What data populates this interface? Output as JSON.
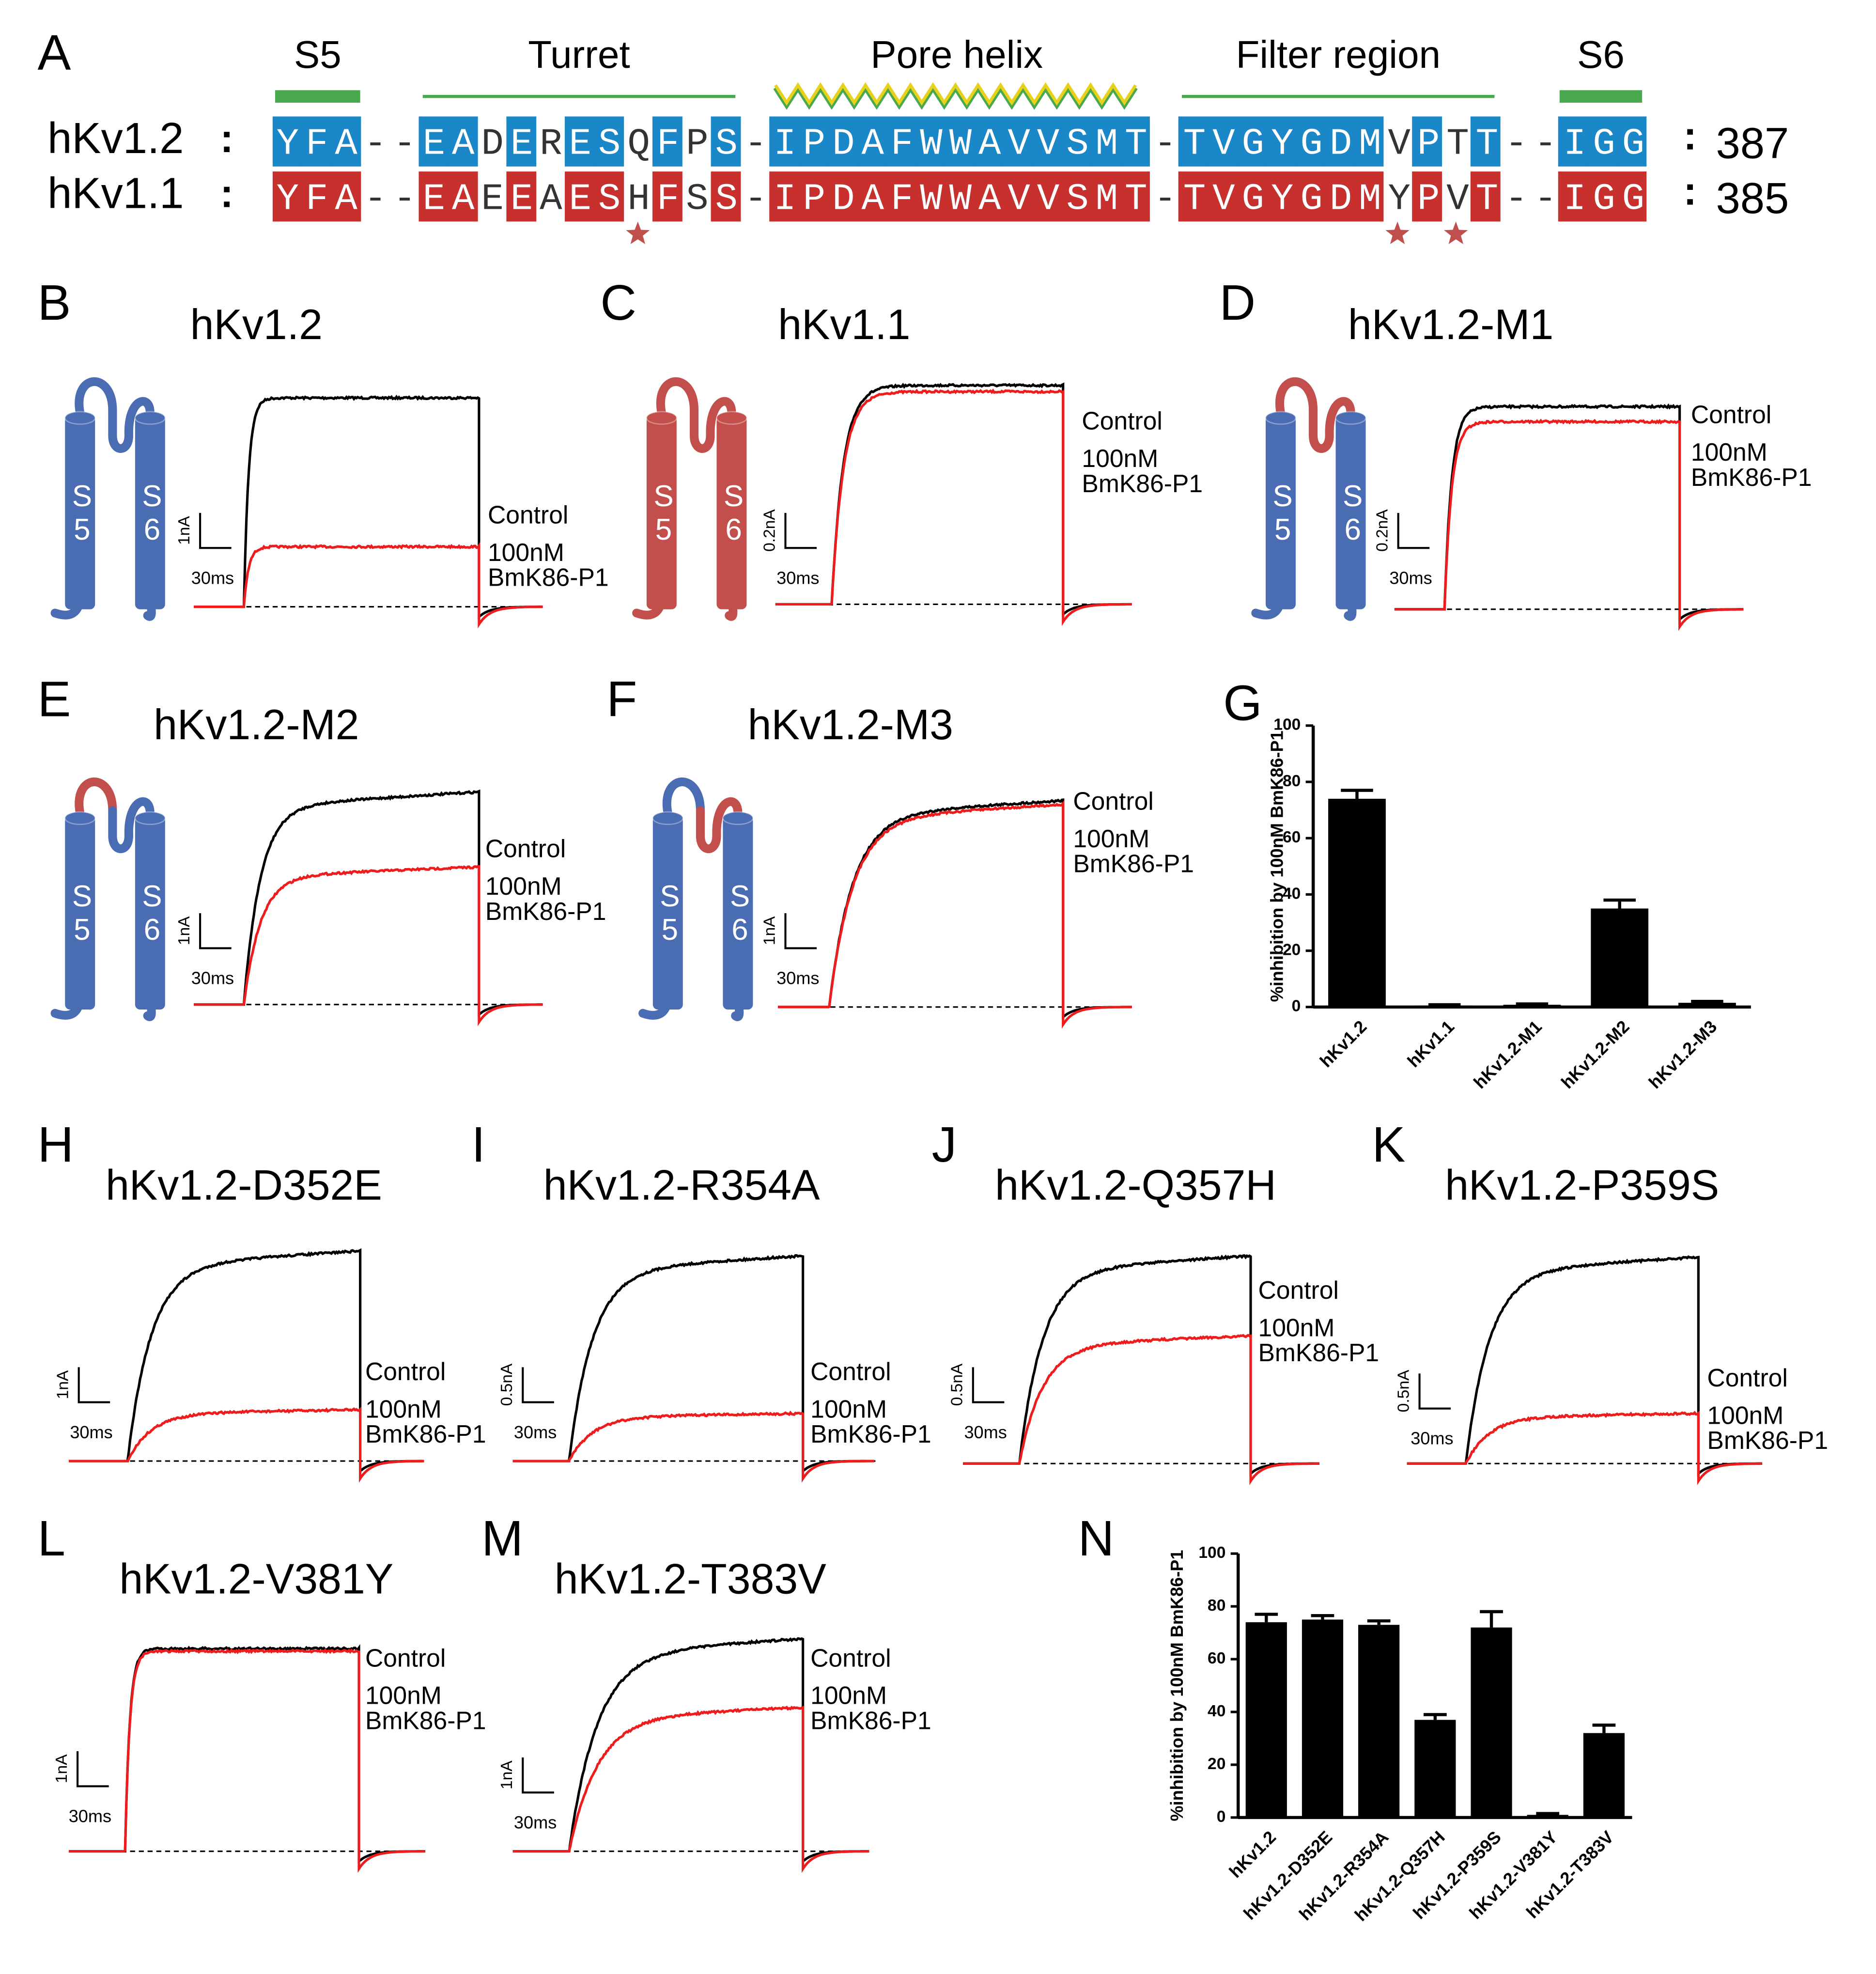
{
  "alignment": {
    "letter": "A",
    "separator": ":",
    "regions": [
      {
        "label": "S5"
      },
      {
        "label": "Turret"
      },
      {
        "label": "Pore helix"
      },
      {
        "label": "Filter region"
      },
      {
        "label": "S6"
      }
    ],
    "rows": [
      {
        "name": "hKv1.2",
        "sequence": "YFA--EADERESQFPS-IPDAFWWAVVSMT-TVGYGDMVPTT--IGG",
        "end": 387,
        "color": "#1a87c8"
      },
      {
        "name": "hKv1.1",
        "sequence": "YFA--EAEEAESHFSS-IPDAFWWAVVSMT-TVGYGDMYPVT--IGG",
        "end": 385,
        "color": "#c8302e"
      }
    ]
  },
  "cartoon_labels": [
    "S5",
    "S6"
  ],
  "trace_colors": {
    "control": "#000000",
    "toxin": "#ee1c1c"
  },
  "traces": [
    {
      "letter": "B",
      "title": "hKv1.2",
      "current_scale": "1nA",
      "time_scale": "30ms",
      "control": "Control",
      "toxin": [
        "100nM",
        "BmK86-P1"
      ]
    },
    {
      "letter": "C",
      "title": "hKv1.1",
      "current_scale": "0.2nA",
      "time_scale": "30ms",
      "control": "Control",
      "toxin": [
        "100nM",
        "BmK86-P1"
      ]
    },
    {
      "letter": "D",
      "title": "hKv1.2-M1",
      "current_scale": "0.2nA",
      "time_scale": "30ms",
      "control": "Control",
      "toxin": [
        "100nM",
        "BmK86-P1"
      ]
    },
    {
      "letter": "E",
      "title": "hKv1.2-M2",
      "current_scale": "1nA",
      "time_scale": "30ms",
      "control": "Control",
      "toxin": [
        "100nM",
        "BmK86-P1"
      ]
    },
    {
      "letter": "F",
      "title": "hKv1.2-M3",
      "current_scale": "1nA",
      "time_scale": "30ms",
      "control": "Control",
      "toxin": [
        "100nM",
        "BmK86-P1"
      ]
    },
    {
      "letter": "H",
      "title": "hKv1.2-D352E",
      "current_scale": "1nA",
      "time_scale": "30ms",
      "control": "Control",
      "toxin": [
        "100nM",
        "BmK86-P1"
      ]
    },
    {
      "letter": "I",
      "title": "hKv1.2-R354A",
      "current_scale": "0.5nA",
      "time_scale": "30ms",
      "control": "Control",
      "toxin": [
        "100nM",
        "BmK86-P1"
      ]
    },
    {
      "letter": "J",
      "title": "hKv1.2-Q357H",
      "current_scale": "0.5nA",
      "time_scale": "30ms",
      "control": "Control",
      "toxin": [
        "100nM",
        "BmK86-P1"
      ]
    },
    {
      "letter": "K",
      "title": "hKv1.2-P359S",
      "current_scale": "0.5nA",
      "time_scale": "30ms",
      "control": "Control",
      "toxin": [
        "100nM",
        "BmK86-P1"
      ]
    },
    {
      "letter": "L",
      "title": "hKv1.2-V381Y",
      "current_scale": "1nA",
      "time_scale": "30ms",
      "control": "Control",
      "toxin": [
        "100nM",
        "BmK86-P1"
      ]
    },
    {
      "letter": "M",
      "title": "hKv1.2-T383V",
      "current_scale": "1nA",
      "time_scale": "30ms",
      "control": "Control",
      "toxin": [
        "100nM",
        "BmK86-P1"
      ]
    }
  ],
  "chart_data": [
    {
      "type": "bar",
      "letter": "G",
      "ylabel": "%inhibition by 100nM BmK86-P1",
      "categories": [
        "hKv1.2",
        "hKv1.1",
        "hKv1.2-M1",
        "hKv1.2-M2",
        "hKv1.2-M3"
      ],
      "values": [
        74,
        0.5,
        0.8,
        35,
        1.5
      ],
      "errors": [
        3,
        0.3,
        0.3,
        3,
        0.5
      ],
      "color": "#000000",
      "ylim": [
        0,
        100
      ],
      "yticks": [
        0,
        20,
        40,
        60,
        80,
        100
      ]
    },
    {
      "type": "bar",
      "letter": "N",
      "ylabel": "%inhibition by 100nM BmK86-P1",
      "categories": [
        "hKv1.2",
        "hKv1.2-D352E",
        "hKv1.2-R354A",
        "hKv1.2-Q357H",
        "hKv1.2-P359S",
        "hKv1.2-V381Y",
        "hKv1.2-T383V"
      ],
      "values": [
        74,
        75,
        73,
        37,
        72,
        1,
        32
      ],
      "errors": [
        3,
        1.5,
        1.5,
        2,
        6,
        0.5,
        3
      ],
      "color": "#000000",
      "ylim": [
        0,
        100
      ],
      "yticks": [
        0,
        20,
        40,
        60,
        80,
        100
      ]
    }
  ]
}
